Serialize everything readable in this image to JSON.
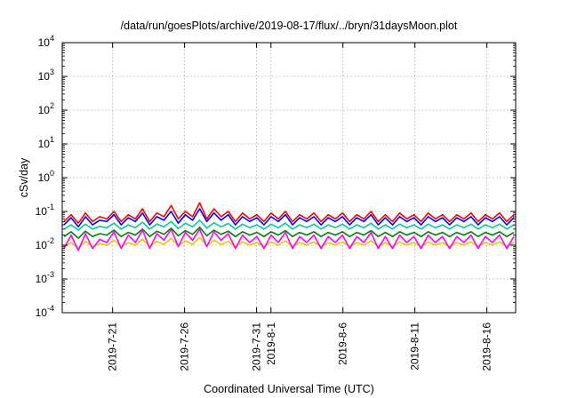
{
  "chart_data": {
    "type": "line",
    "title": "/data/run/goesPlots/archive/2019-08-17/flux/../bryn/31daysMoon.plot",
    "xlabel": "Coordinated Universal Time (UTC)",
    "ylabel": "cSv/day",
    "yscale": "log",
    "ylim": [
      0.0001,
      10000
    ],
    "xlim": [
      "2019-07-17T12:00",
      "2019-08-18T00:00"
    ],
    "grid": true,
    "legend": "none",
    "y_ticks": [
      {
        "base": "10",
        "exp": "-4",
        "value": 0.0001
      },
      {
        "base": "10",
        "exp": "-3",
        "value": 0.001
      },
      {
        "base": "10",
        "exp": "-2",
        "value": 0.01
      },
      {
        "base": "10",
        "exp": "-1",
        "value": 0.1
      },
      {
        "base": "10",
        "exp": "0",
        "value": 1
      },
      {
        "base": "10",
        "exp": "1",
        "value": 10
      },
      {
        "base": "10",
        "exp": "2",
        "value": 100
      },
      {
        "base": "10",
        "exp": "3",
        "value": 1000
      },
      {
        "base": "10",
        "exp": "4",
        "value": 10000
      }
    ],
    "x_ticks": [
      {
        "date": "2019-07-21",
        "labels": [
          "2019-7-21"
        ]
      },
      {
        "date": "2019-07-26",
        "labels": [
          "2019-7-26"
        ]
      },
      {
        "date": "2019-07-31",
        "labels": [
          "2019-7-31"
        ]
      },
      {
        "date": "2019-08-01",
        "labels": [
          "2019-8-1"
        ]
      },
      {
        "date": "2019-08-06",
        "labels": [
          "2019-8-6"
        ]
      },
      {
        "date": "2019-08-11",
        "labels": [
          "2019-8-11"
        ]
      },
      {
        "date": "2019-08-16",
        "labels": [
          "2019-8-16"
        ]
      }
    ],
    "series": [
      {
        "color": "#ff0000",
        "values": [
          0.05,
          0.08,
          0.045,
          0.09,
          0.05,
          0.07,
          0.06,
          0.1,
          0.05,
          0.08,
          0.06,
          0.12,
          0.05,
          0.09,
          0.07,
          0.15,
          0.06,
          0.1,
          0.07,
          0.18,
          0.06,
          0.12,
          0.07,
          0.1,
          0.05,
          0.09,
          0.06,
          0.08,
          0.05,
          0.09,
          0.06,
          0.1,
          0.05,
          0.08,
          0.06,
          0.09,
          0.05,
          0.08,
          0.06,
          0.09,
          0.05,
          0.08,
          0.06,
          0.1,
          0.05,
          0.08,
          0.05,
          0.09,
          0.06,
          0.08,
          0.05,
          0.09,
          0.06,
          0.08,
          0.05,
          0.08,
          0.06,
          0.09,
          0.05,
          0.08,
          0.06,
          0.09,
          0.05,
          0.08
        ]
      },
      {
        "color": "#0000ff",
        "values": [
          0.04,
          0.065,
          0.035,
          0.07,
          0.04,
          0.055,
          0.05,
          0.08,
          0.04,
          0.065,
          0.05,
          0.09,
          0.04,
          0.07,
          0.055,
          0.1,
          0.045,
          0.08,
          0.055,
          0.12,
          0.05,
          0.09,
          0.055,
          0.08,
          0.04,
          0.07,
          0.05,
          0.065,
          0.04,
          0.07,
          0.05,
          0.08,
          0.04,
          0.065,
          0.05,
          0.07,
          0.04,
          0.065,
          0.05,
          0.07,
          0.04,
          0.065,
          0.05,
          0.08,
          0.04,
          0.065,
          0.04,
          0.07,
          0.05,
          0.065,
          0.04,
          0.07,
          0.05,
          0.065,
          0.04,
          0.065,
          0.05,
          0.07,
          0.04,
          0.065,
          0.05,
          0.07,
          0.04,
          0.065
        ]
      },
      {
        "color": "#00cc99",
        "values": [
          0.03,
          0.04,
          0.028,
          0.042,
          0.03,
          0.036,
          0.033,
          0.045,
          0.03,
          0.04,
          0.033,
          0.048,
          0.03,
          0.042,
          0.035,
          0.05,
          0.031,
          0.045,
          0.035,
          0.055,
          0.032,
          0.046,
          0.035,
          0.044,
          0.03,
          0.042,
          0.033,
          0.04,
          0.03,
          0.042,
          0.033,
          0.045,
          0.03,
          0.04,
          0.033,
          0.042,
          0.03,
          0.04,
          0.033,
          0.042,
          0.03,
          0.04,
          0.033,
          0.045,
          0.03,
          0.04,
          0.03,
          0.042,
          0.033,
          0.04,
          0.03,
          0.042,
          0.033,
          0.04,
          0.03,
          0.04,
          0.033,
          0.042,
          0.03,
          0.04,
          0.033,
          0.042,
          0.03,
          0.04
        ]
      },
      {
        "color": "#008000",
        "values": [
          0.018,
          0.025,
          0.016,
          0.026,
          0.018,
          0.022,
          0.02,
          0.028,
          0.018,
          0.024,
          0.02,
          0.03,
          0.018,
          0.026,
          0.021,
          0.032,
          0.019,
          0.027,
          0.021,
          0.034,
          0.019,
          0.028,
          0.021,
          0.026,
          0.018,
          0.025,
          0.02,
          0.024,
          0.018,
          0.025,
          0.02,
          0.027,
          0.018,
          0.024,
          0.02,
          0.025,
          0.018,
          0.024,
          0.02,
          0.025,
          0.018,
          0.024,
          0.02,
          0.027,
          0.018,
          0.024,
          0.018,
          0.025,
          0.02,
          0.024,
          0.018,
          0.025,
          0.02,
          0.024,
          0.018,
          0.024,
          0.02,
          0.025,
          0.018,
          0.024,
          0.02,
          0.025,
          0.018,
          0.024
        ]
      },
      {
        "color": "#e6c800",
        "values": [
          0.009,
          0.012,
          0.008,
          0.013,
          0.009,
          0.011,
          0.01,
          0.014,
          0.009,
          0.012,
          0.01,
          0.015,
          0.009,
          0.013,
          0.0105,
          0.016,
          0.0095,
          0.0135,
          0.0105,
          0.017,
          0.0095,
          0.014,
          0.0105,
          0.013,
          0.009,
          0.0125,
          0.01,
          0.012,
          0.009,
          0.0125,
          0.01,
          0.0135,
          0.009,
          0.012,
          0.01,
          0.0125,
          0.009,
          0.012,
          0.01,
          0.0125,
          0.009,
          0.012,
          0.01,
          0.0135,
          0.009,
          0.012,
          0.009,
          0.0125,
          0.01,
          0.012,
          0.009,
          0.0125,
          0.01,
          0.012,
          0.009,
          0.012,
          0.01,
          0.0125,
          0.009,
          0.012,
          0.01,
          0.0125,
          0.009,
          0.012
        ]
      },
      {
        "color": "#ff00ff",
        "values": [
          0.008,
          0.02,
          0.007,
          0.022,
          0.008,
          0.015,
          0.012,
          0.025,
          0.008,
          0.02,
          0.012,
          0.028,
          0.008,
          0.022,
          0.014,
          0.03,
          0.009,
          0.024,
          0.014,
          0.03,
          0.009,
          0.025,
          0.014,
          0.022,
          0.008,
          0.02,
          0.012,
          0.018,
          0.008,
          0.02,
          0.012,
          0.024,
          0.008,
          0.018,
          0.012,
          0.02,
          0.008,
          0.018,
          0.012,
          0.02,
          0.008,
          0.018,
          0.012,
          0.024,
          0.008,
          0.018,
          0.008,
          0.02,
          0.012,
          0.018,
          0.008,
          0.02,
          0.012,
          0.018,
          0.008,
          0.018,
          0.012,
          0.02,
          0.008,
          0.018,
          0.012,
          0.02,
          0.008,
          0.018
        ]
      }
    ]
  }
}
